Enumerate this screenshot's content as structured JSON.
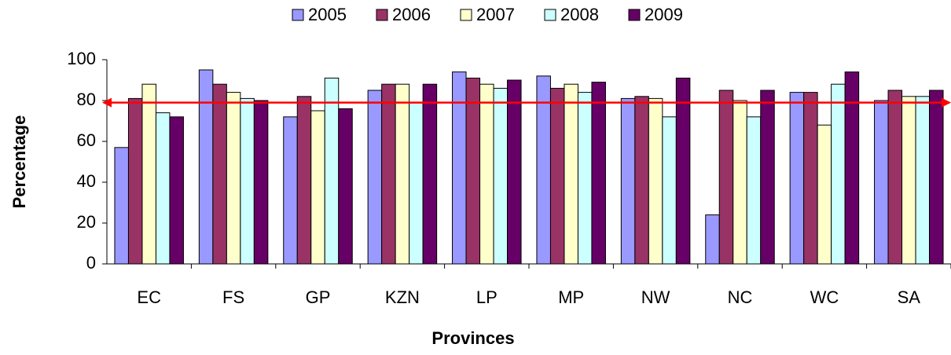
{
  "chart_data": {
    "type": "bar",
    "x_label": "Provinces",
    "y_label": "Percentage",
    "categories": [
      "EC",
      "FS",
      "GP",
      "KZN",
      "LP",
      "MP",
      "NW",
      "NC",
      "WC",
      "SA"
    ],
    "series": [
      {
        "name": "2005",
        "color": "#9999ff",
        "values": [
          57,
          95,
          72,
          85,
          94,
          92,
          81,
          24,
          84,
          80
        ]
      },
      {
        "name": "2006",
        "color": "#993366",
        "values": [
          81,
          88,
          82,
          88,
          91,
          86,
          82,
          85,
          84,
          85
        ]
      },
      {
        "name": "2007",
        "color": "#ffffcc",
        "values": [
          88,
          84,
          75,
          88,
          88,
          88,
          81,
          80,
          68,
          82
        ]
      },
      {
        "name": "2008",
        "color": "#ccffff",
        "values": [
          74,
          81,
          91,
          79,
          86,
          84,
          72,
          72,
          88,
          82
        ]
      },
      {
        "name": "2009",
        "color": "#660066",
        "values": [
          72,
          80,
          76,
          88,
          90,
          89,
          91,
          85,
          94,
          85
        ]
      }
    ],
    "reference_line": {
      "value": 79,
      "color": "#ff0000"
    },
    "ylim": [
      0,
      100
    ],
    "yticks": [
      0,
      20,
      40,
      60,
      80,
      100
    ],
    "grid": false,
    "legend": "top"
  }
}
